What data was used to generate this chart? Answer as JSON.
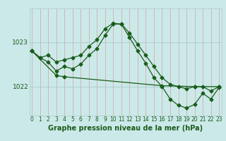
{
  "line1": {
    "x": [
      0,
      1,
      2,
      3,
      4,
      5,
      6,
      7,
      8,
      9,
      10,
      11,
      12,
      13,
      14,
      15,
      16,
      17,
      18,
      19,
      20,
      21,
      22,
      23
    ],
    "y": [
      1022.8,
      1022.65,
      1022.7,
      1022.55,
      1022.6,
      1022.65,
      1022.7,
      1022.9,
      1023.05,
      1023.3,
      1023.42,
      1023.4,
      1023.2,
      1022.95,
      1022.7,
      1022.45,
      1022.2,
      1022.05,
      1022.0,
      1021.95,
      1022.0,
      1022.0,
      1021.9,
      1022.0
    ]
  },
  "line2": {
    "x": [
      0,
      1,
      2,
      3,
      4,
      5,
      6,
      7,
      8,
      9,
      10,
      11,
      12,
      13,
      14,
      15,
      16,
      17,
      18,
      19,
      20,
      21,
      22,
      23
    ],
    "y": [
      1022.8,
      1022.65,
      1022.55,
      1022.35,
      1022.45,
      1022.4,
      1022.5,
      1022.7,
      1022.85,
      1023.15,
      1023.4,
      1023.4,
      1023.1,
      1022.8,
      1022.52,
      1022.2,
      1022.0,
      1021.72,
      1021.58,
      1021.52,
      1021.6,
      1021.85,
      1021.72,
      1021.98
    ]
  },
  "line3": {
    "x": [
      0,
      3,
      4,
      16,
      20,
      23
    ],
    "y": [
      1022.8,
      1022.25,
      1022.22,
      1022.02,
      1022.0,
      1022.0
    ]
  },
  "yticks": [
    1022,
    1023
  ],
  "ylim": [
    1021.35,
    1023.75
  ],
  "xlim": [
    -0.3,
    23.3
  ],
  "xticks": [
    0,
    1,
    2,
    3,
    4,
    5,
    6,
    7,
    8,
    9,
    10,
    11,
    12,
    13,
    14,
    15,
    16,
    17,
    18,
    19,
    20,
    21,
    22,
    23
  ],
  "xlabel": "Graphe pression niveau de la mer (hPa)",
  "background_color": "#cce9e9",
  "line_color": "#1a5c1a",
  "vgrid_color": "#d4a0a0",
  "hgrid_color": "#a8cccc",
  "marker": "D",
  "markersize": 2.5,
  "linewidth": 0.9,
  "xlabel_fontsize": 7,
  "ytick_fontsize": 6.5,
  "xtick_fontsize": 5.5
}
